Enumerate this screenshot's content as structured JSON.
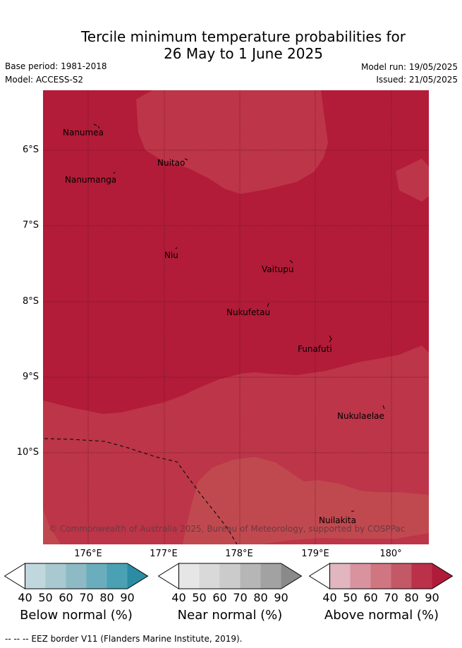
{
  "title_line1": "Tercile minimum temperature probabilities for",
  "title_line2": "26 May to 1 June 2025",
  "meta": {
    "base_period": "Base period: 1981-2018",
    "model": "Model: ACCESS-S2",
    "model_run": "Model run: 19/05/2025",
    "issued": "Issued: 21/05/2025"
  },
  "map": {
    "lat_labels": [
      "6°S",
      "7°S",
      "8°S",
      "9°S",
      "10°S"
    ],
    "lon_labels": [
      "176°E",
      "177°E",
      "178°E",
      "179°E",
      "180°"
    ],
    "places": [
      "Nanumea",
      "Nuitao",
      "Nanumanga",
      "Niu",
      "Vaitupu",
      "Nukufetau",
      "Funafuti",
      "Nukulaelae",
      "Nuilakita"
    ],
    "copyright": "© Commonwealth of Australia 2025, Bureau of Meteorology, supported by COSPPac",
    "colors": {
      "above_90": "#b21c38",
      "above_80": "#bd3548",
      "above_70": "#c0494f"
    }
  },
  "legend": {
    "ticks": [
      "40",
      "50",
      "60",
      "70",
      "80",
      "90"
    ],
    "below_title": "Below normal (%)",
    "near_title": "Near normal (%)",
    "above_title": "Above normal (%)",
    "below_colors": [
      "#c0d7dd",
      "#a7c9cf",
      "#8ebac6",
      "#6aaebd",
      "#49a1b3",
      "#2b8ca4"
    ],
    "near_colors": [
      "#e6e6e6",
      "#d9d9d9",
      "#cbcbcb",
      "#b6b6b6",
      "#a2a2a2",
      "#8a8a8a"
    ],
    "above_colors": [
      "#e1b6be",
      "#d8939f",
      "#cf7681",
      "#c35866",
      "#bb3149",
      "#b01b39"
    ]
  },
  "footer": "--  --  -- EEZ border V11 (Flanders Marine Institute, 2019)."
}
